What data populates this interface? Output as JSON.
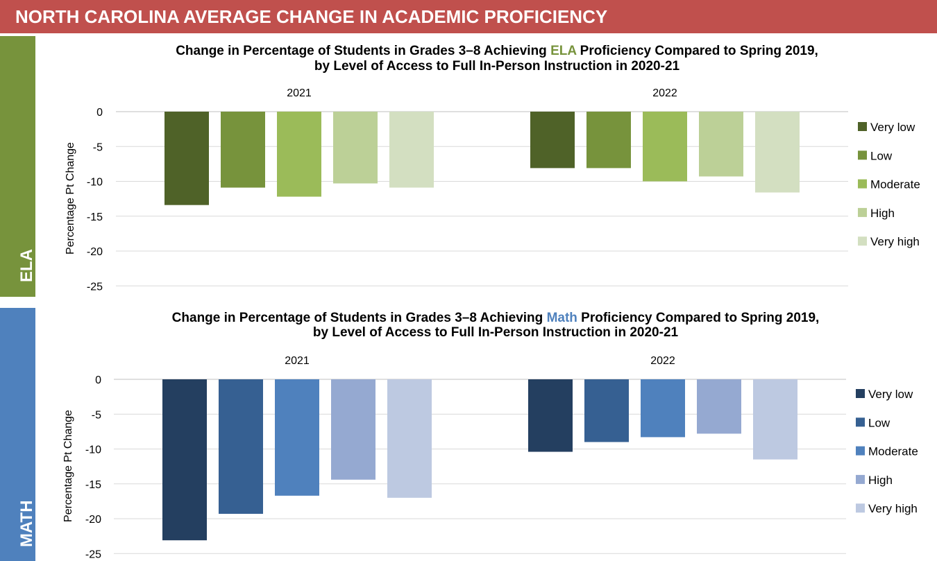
{
  "header": {
    "title": "NORTH CAROLINA AVERAGE CHANGE IN ACADEMIC PROFICIENCY"
  },
  "sections": {
    "ela": {
      "label": "ELA",
      "color": "#77933c"
    },
    "math": {
      "label": "MATH",
      "color": "#4f81bd"
    }
  },
  "chart_data": [
    {
      "type": "bar",
      "title_before": "Change in Percentage of Students in Grades 3–8 Achieving ",
      "title_highlight": "ELA",
      "title_after": " Proficiency Compared to Spring 2019,",
      "title_line2": "by Level of Access to Full In-Person Instruction in 2020-21",
      "highlight_color": "#77933c",
      "categories": [
        "2021",
        "2022"
      ],
      "ylabel": "Percentage Pt Change",
      "ylim": [
        -25,
        0
      ],
      "yticks": [
        0,
        -5,
        -10,
        -15,
        -20,
        -25
      ],
      "grid": true,
      "legend_position": "right",
      "series": [
        {
          "name": "Very low",
          "color": "#4f6228",
          "values": [
            -13.4,
            -8.1
          ]
        },
        {
          "name": "Low",
          "color": "#77933c",
          "values": [
            -10.9,
            -8.1
          ]
        },
        {
          "name": "Moderate",
          "color": "#9bbb59",
          "values": [
            -12.2,
            -10.0
          ]
        },
        {
          "name": "High",
          "color": "#bcd097",
          "values": [
            -10.3,
            -9.3
          ]
        },
        {
          "name": "Very high",
          "color": "#d3dfc1",
          "values": [
            -10.9,
            -11.6
          ]
        }
      ]
    },
    {
      "type": "bar",
      "title_before": "Change in Percentage of Students in Grades 3–8 Achieving ",
      "title_highlight": "Math",
      "title_after": " Proficiency Compared to Spring 2019,",
      "title_line2": "by Level of Access to Full In-Person Instruction in 2020-21",
      "highlight_color": "#4f81bd",
      "categories": [
        "2021",
        "2022"
      ],
      "ylabel": "Percentage Pt Change",
      "ylim": [
        -25,
        0
      ],
      "yticks": [
        0,
        -5,
        -10,
        -15,
        -20,
        -25
      ],
      "grid": true,
      "legend_position": "right",
      "series": [
        {
          "name": "Very low",
          "color": "#243f60",
          "values": [
            -23.1,
            -10.4
          ]
        },
        {
          "name": "Low",
          "color": "#366092",
          "values": [
            -19.3,
            -9.0
          ]
        },
        {
          "name": "Moderate",
          "color": "#4f81bd",
          "values": [
            -16.7,
            -8.3
          ]
        },
        {
          "name": "High",
          "color": "#95a9d1",
          "values": [
            -14.4,
            -7.8
          ]
        },
        {
          "name": "Very high",
          "color": "#bdc9e1",
          "values": [
            -17.0,
            -11.5
          ]
        }
      ]
    }
  ]
}
